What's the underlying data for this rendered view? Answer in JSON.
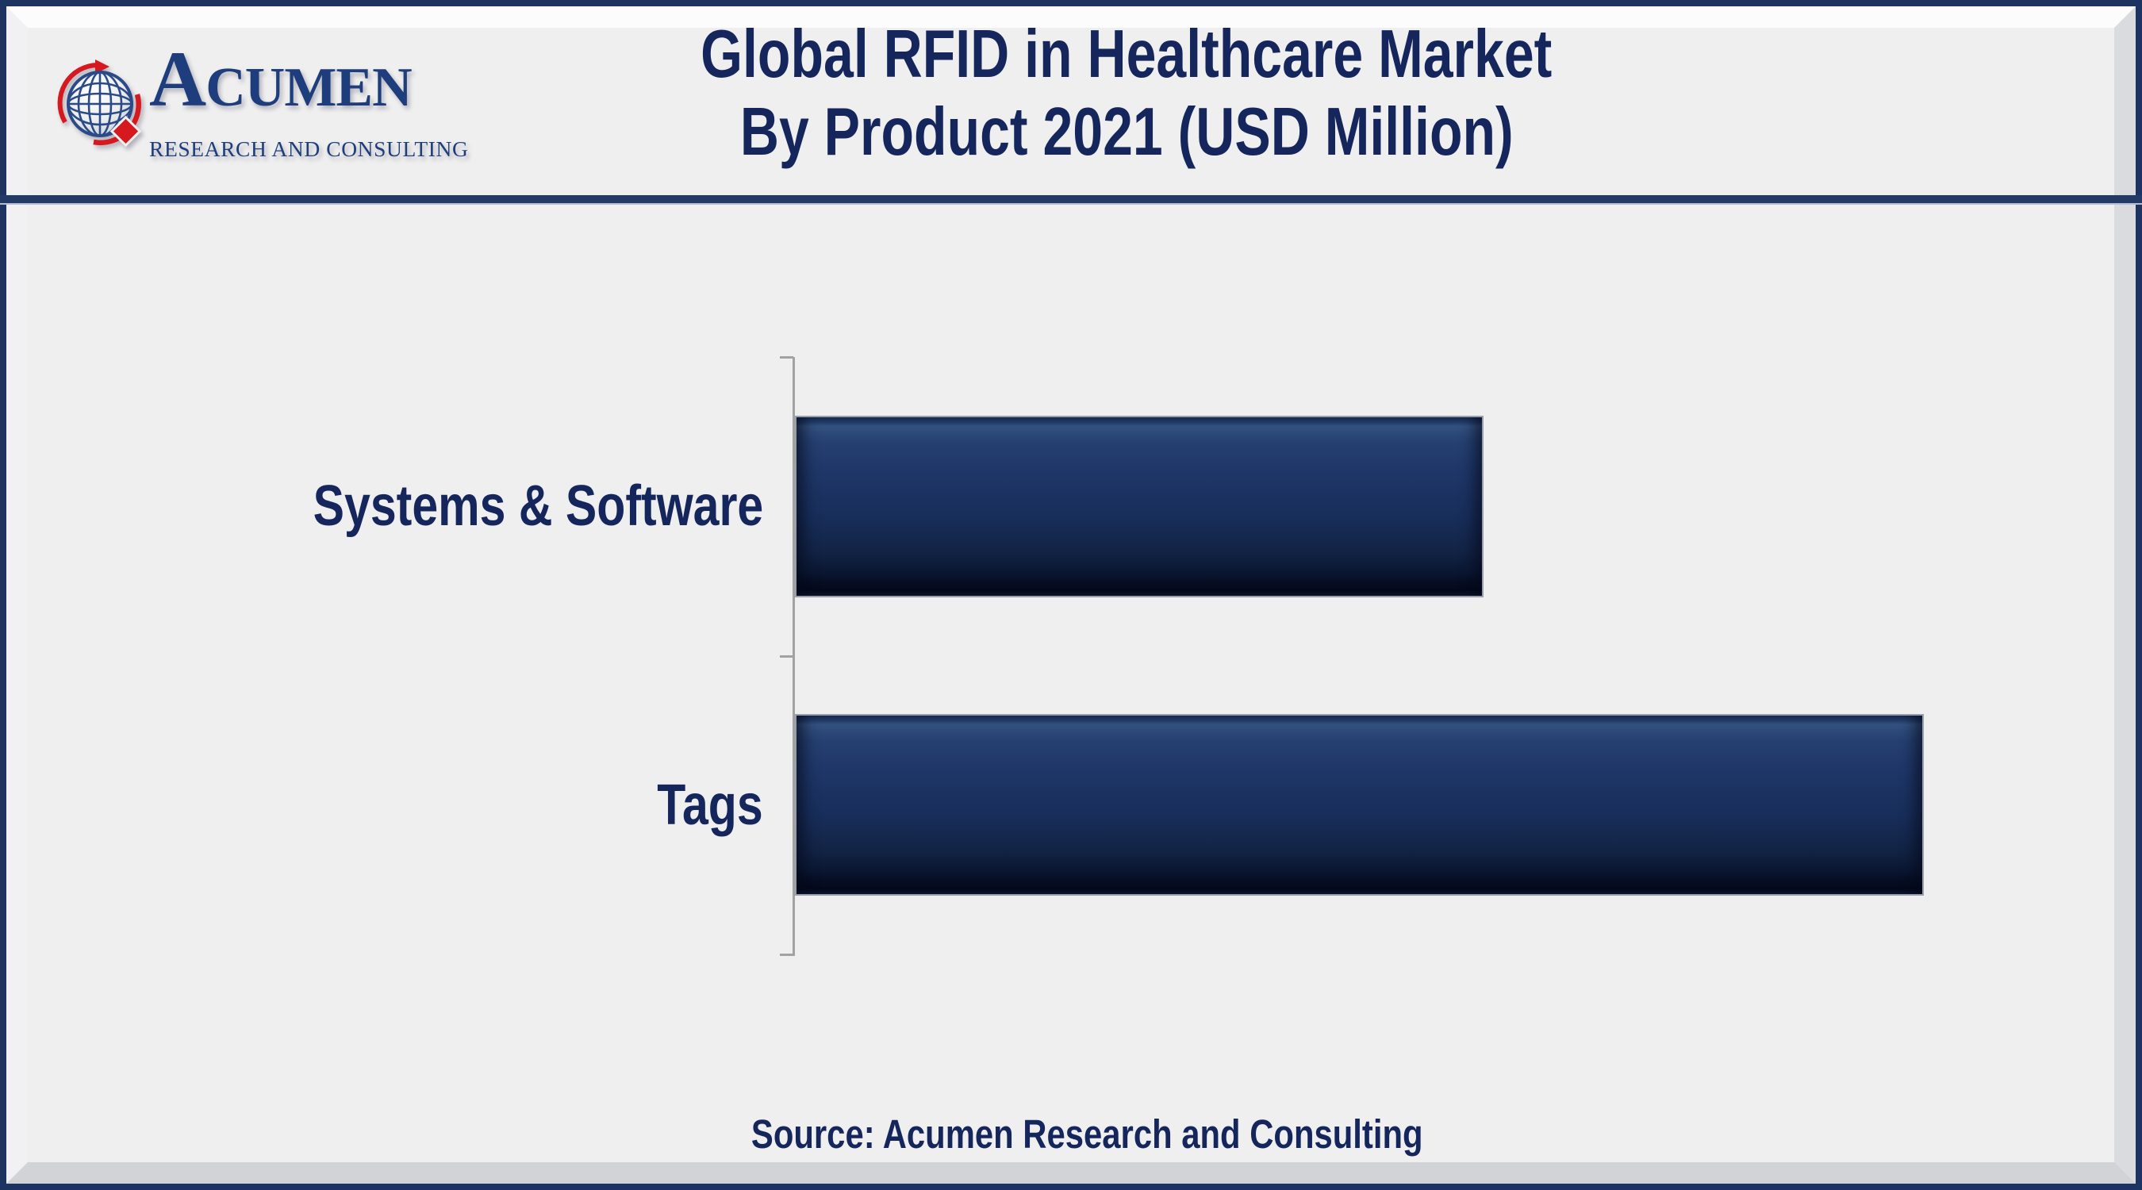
{
  "page": {
    "background": "#efefef",
    "frame_border_color": "#1d3461",
    "divider_color": "#233a66"
  },
  "logo": {
    "brand_initial": "A",
    "brand_rest": "CUMEN",
    "subtitle": "RESEARCH AND CONSULTING",
    "navy": "#1d3d7c",
    "red": "#d6181f"
  },
  "header": {
    "title_line1": "Global RFID in Healthcare Market",
    "title_line2": "By Product 2021 (USD Million)",
    "title_color": "#15265c"
  },
  "chart_data": {
    "type": "bar",
    "orientation": "horizontal",
    "title": "Global RFID in Healthcare Market By Product 2021 (USD Million)",
    "categories": [
      "Systems & Software",
      "Tags"
    ],
    "values": [
      61,
      100
    ],
    "value_axis_labels_shown": false,
    "data_labels_shown": false,
    "xlim": [
      0,
      117
    ],
    "grid": false,
    "legend": false,
    "bar_fill": "#1d3462",
    "bar_highlight": "#33517f",
    "bar_shadow": "#081128",
    "axis_color": "#a2a2a2",
    "label_color": "#15265c"
  },
  "footer": {
    "source": "Source: Acumen Research and Consulting"
  }
}
